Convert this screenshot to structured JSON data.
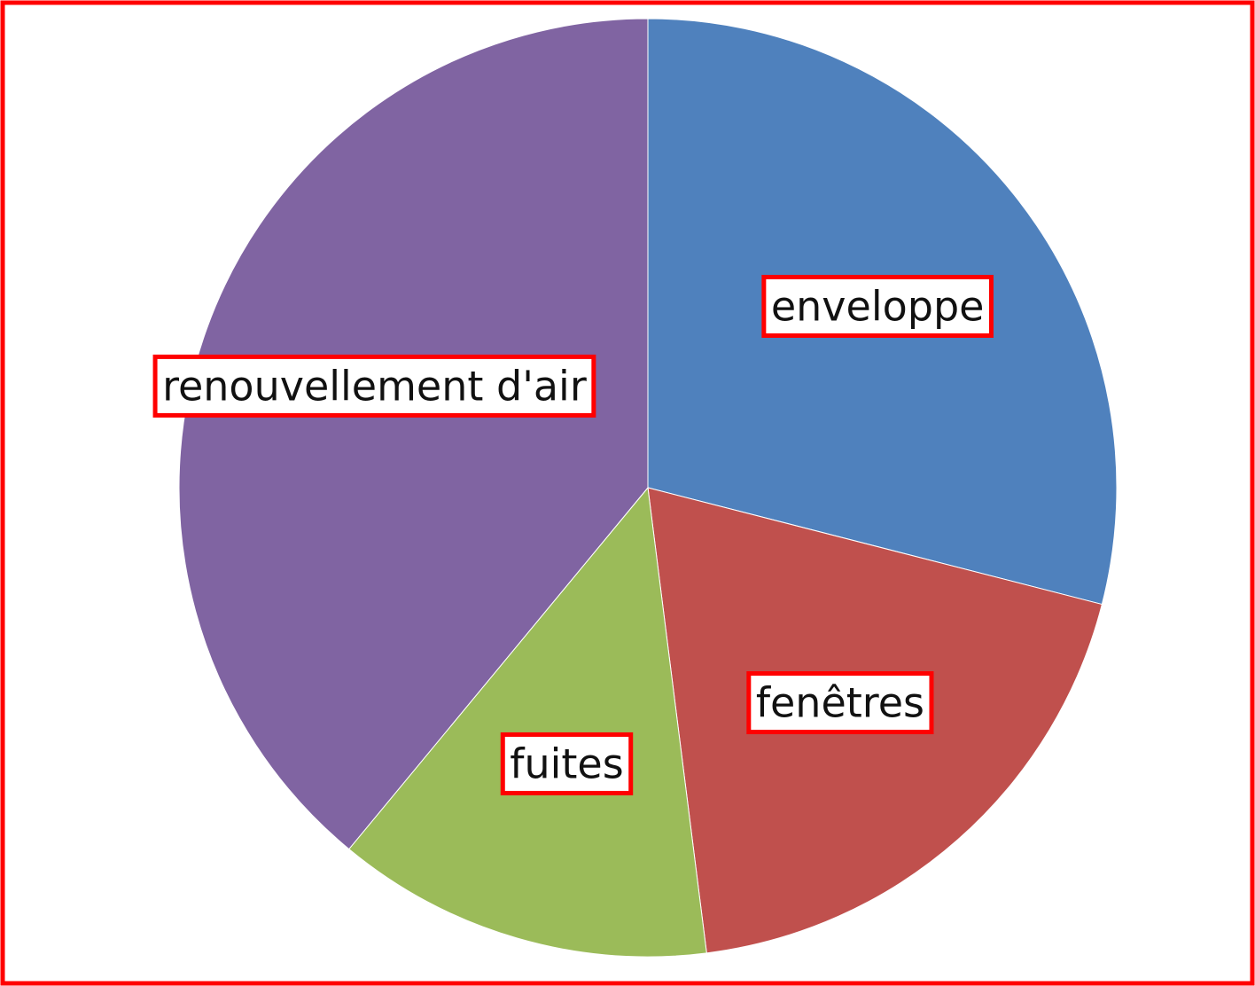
{
  "chart_data": {
    "type": "pie",
    "categories": [
      "enveloppe",
      "fenêtres",
      "fuites",
      "renouvellement d'air"
    ],
    "values": [
      29,
      19,
      13,
      39
    ],
    "colors": [
      "#4f81bd",
      "#c0504d",
      "#9bbb59",
      "#8064a2"
    ]
  }
}
